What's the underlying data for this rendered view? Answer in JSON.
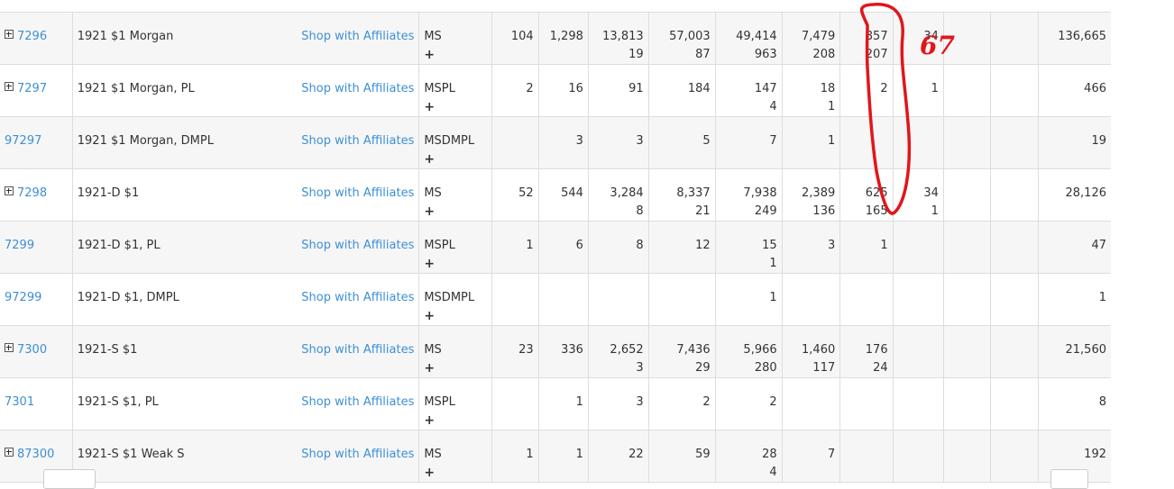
{
  "rows": [
    {
      "id": "7296",
      "expand": true,
      "name": "1921 $1 Morgan",
      "aff": "Shop with Affiliates",
      "type": "MS",
      "plus": "+",
      "c": [
        [
          "104",
          ""
        ],
        [
          "1,298",
          ""
        ],
        [
          "13,813",
          "19"
        ],
        [
          "57,003",
          "87"
        ],
        [
          "49,414",
          "963"
        ],
        [
          "7,479",
          "208"
        ],
        [
          "857",
          "207"
        ],
        [
          "34",
          ""
        ],
        [
          "",
          ""
        ],
        [
          "",
          ""
        ]
      ],
      "total": "136,665"
    },
    {
      "id": "7297",
      "expand": true,
      "name": "1921 $1 Morgan, PL",
      "aff": "Shop with Affiliates",
      "type": "MSPL",
      "plus": "+",
      "c": [
        [
          "2",
          ""
        ],
        [
          "16",
          ""
        ],
        [
          "91",
          ""
        ],
        [
          "184",
          ""
        ],
        [
          "147",
          "4"
        ],
        [
          "18",
          "1"
        ],
        [
          "2",
          ""
        ],
        [
          "1",
          ""
        ],
        [
          "",
          ""
        ],
        [
          "",
          ""
        ]
      ],
      "total": "466"
    },
    {
      "id": "97297",
      "expand": false,
      "name": "1921 $1 Morgan, DMPL",
      "aff": "Shop with Affiliates",
      "type": "MSDMPL",
      "plus": "+",
      "c": [
        [
          "",
          ""
        ],
        [
          "3",
          ""
        ],
        [
          "3",
          ""
        ],
        [
          "5",
          ""
        ],
        [
          "7",
          ""
        ],
        [
          "1",
          ""
        ],
        [
          "",
          ""
        ],
        [
          "",
          ""
        ],
        [
          "",
          ""
        ],
        [
          "",
          ""
        ]
      ],
      "total": "19"
    },
    {
      "id": "7298",
      "expand": true,
      "name": "1921-D $1",
      "aff": "Shop with Affiliates",
      "type": "MS",
      "plus": "+",
      "c": [
        [
          "52",
          ""
        ],
        [
          "544",
          ""
        ],
        [
          "3,284",
          "8"
        ],
        [
          "8,337",
          "21"
        ],
        [
          "7,938",
          "249"
        ],
        [
          "2,389",
          "136"
        ],
        [
          "625",
          "165"
        ],
        [
          "34",
          "1"
        ],
        [
          "",
          ""
        ],
        [
          "",
          ""
        ]
      ],
      "total": "28,126"
    },
    {
      "id": "7299",
      "expand": false,
      "name": "1921-D $1, PL",
      "aff": "Shop with Affiliates",
      "type": "MSPL",
      "plus": "+",
      "c": [
        [
          "1",
          ""
        ],
        [
          "6",
          ""
        ],
        [
          "8",
          ""
        ],
        [
          "12",
          ""
        ],
        [
          "15",
          "1"
        ],
        [
          "3",
          ""
        ],
        [
          "1",
          ""
        ],
        [
          "",
          ""
        ],
        [
          "",
          ""
        ],
        [
          "",
          ""
        ]
      ],
      "total": "47"
    },
    {
      "id": "97299",
      "expand": false,
      "name": "1921-D $1, DMPL",
      "aff": "Shop with Affiliates",
      "type": "MSDMPL",
      "plus": "+",
      "c": [
        [
          "",
          ""
        ],
        [
          "",
          ""
        ],
        [
          "",
          ""
        ],
        [
          "",
          ""
        ],
        [
          "1",
          ""
        ],
        [
          "",
          ""
        ],
        [
          "",
          ""
        ],
        [
          "",
          ""
        ],
        [
          "",
          ""
        ],
        [
          "",
          ""
        ]
      ],
      "total": "1"
    },
    {
      "id": "7300",
      "expand": true,
      "name": "1921-S $1",
      "aff": "Shop with Affiliates",
      "type": "MS",
      "plus": "+",
      "c": [
        [
          "23",
          ""
        ],
        [
          "336",
          ""
        ],
        [
          "2,652",
          "3"
        ],
        [
          "7,436",
          "29"
        ],
        [
          "5,966",
          "280"
        ],
        [
          "1,460",
          "117"
        ],
        [
          "176",
          "24"
        ],
        [
          "",
          ""
        ],
        [
          "",
          ""
        ],
        [
          "",
          ""
        ]
      ],
      "total": "21,560"
    },
    {
      "id": "7301",
      "expand": false,
      "name": "1921-S $1, PL",
      "aff": "Shop with Affiliates",
      "type": "MSPL",
      "plus": "+",
      "c": [
        [
          "",
          ""
        ],
        [
          "1",
          ""
        ],
        [
          "3",
          ""
        ],
        [
          "2",
          ""
        ],
        [
          "2",
          ""
        ],
        [
          "",
          ""
        ],
        [
          "",
          ""
        ],
        [
          "",
          ""
        ],
        [
          "",
          ""
        ],
        [
          "",
          ""
        ]
      ],
      "total": "8"
    },
    {
      "id": "87300",
      "expand": true,
      "name": "1921-S $1 Weak S",
      "aff": "Shop with Affiliates",
      "type": "MS",
      "plus": "+",
      "c": [
        [
          "1",
          ""
        ],
        [
          "1",
          ""
        ],
        [
          "22",
          ""
        ],
        [
          "59",
          ""
        ],
        [
          "28",
          "4"
        ],
        [
          "7",
          ""
        ],
        [
          "",
          ""
        ],
        [
          "",
          ""
        ],
        [
          "",
          ""
        ],
        [
          "",
          ""
        ]
      ],
      "total": "192"
    }
  ],
  "annotation": {
    "text": "67",
    "color": "#e1161b"
  },
  "colors": {
    "link": "#3d8fd6",
    "border": "#dddddd",
    "stripe": "#f6f6f6"
  }
}
